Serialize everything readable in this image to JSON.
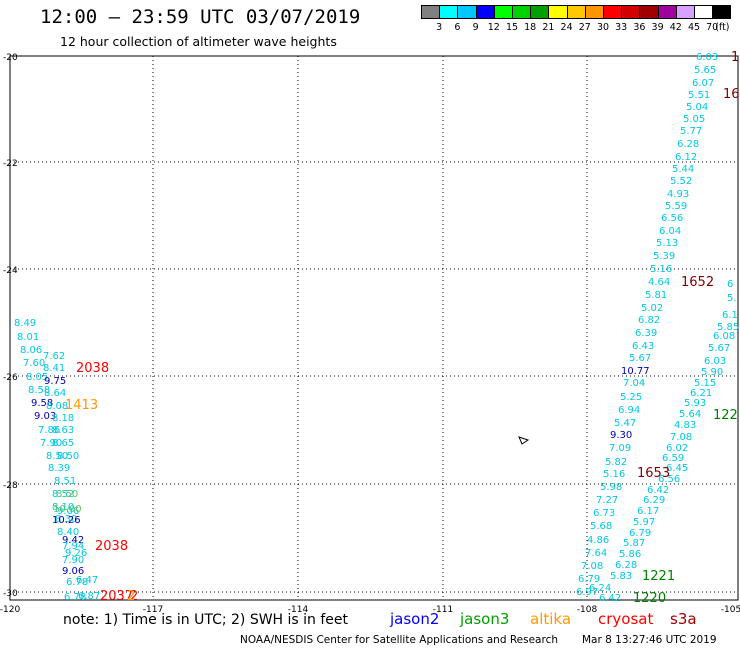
{
  "title": "12:00 — 23:59 UTC 03/07/2019",
  "subtitle": "12 hour collection of altimeter wave heights",
  "color_scale": {
    "ticks": [
      "3",
      "6",
      "9",
      "12",
      "15",
      "18",
      "21",
      "24",
      "27",
      "30",
      "33",
      "36",
      "39",
      "42",
      "45",
      "70"
    ],
    "unit": "(ft)",
    "colors": [
      "#808080",
      "#00ffff",
      "#00c8ff",
      "#0000ff",
      "#00ff00",
      "#00d200",
      "#00a000",
      "#ffff00",
      "#ffc800",
      "#ff9600",
      "#ff0000",
      "#d20000",
      "#a00000",
      "#a000a0",
      "#d8a0ff",
      "#ffffff",
      "#000000"
    ]
  },
  "map": {
    "lon_ticks": [
      "-120",
      "-117",
      "-114",
      "-111",
      "-108",
      "-105"
    ],
    "lat_ticks": [
      "-20",
      "-22",
      "-24",
      "-26",
      "-28",
      "-30"
    ]
  },
  "swaths": {
    "track_cyan": {
      "color": "#00c8e6",
      "labels": [
        "6.03",
        "5.65",
        "6.07",
        "5.51",
        "5.04",
        "5.05",
        "5.77",
        "6.28",
        "6.12",
        "5.44",
        "5.52",
        "4.93",
        "5.59",
        "6.56",
        "6.04",
        "5.13",
        "5.39",
        "5.16",
        "4.64",
        "5.81",
        "5.02",
        "6.82",
        "6.39",
        "6.43",
        "5.67",
        "7.04",
        "5.25",
        "6.94",
        "5.47",
        "7.09",
        "5.82",
        "5.16",
        "5.98",
        "7.27",
        "6.73",
        "5.68",
        "4.86",
        "7.64",
        "7.08",
        "6.79",
        "6.97",
        "6.24",
        "6.42",
        "5.83",
        "6.28",
        "5.86",
        "5.87",
        "6.79",
        "5.97",
        "6.17",
        "6.29",
        "6.42",
        "6.59",
        "6.02",
        "7.08",
        "4.83",
        "5.64",
        "5.93",
        "6.21",
        "5.15",
        "5.90",
        "6.03",
        "5.67",
        "6.08",
        "5.85",
        "6.1"
      ]
    },
    "track_blue": {
      "color": "#0000b4",
      "labels": [
        "10.77",
        "9.30"
      ]
    },
    "track_left": {
      "labels": [
        "8.49",
        "8.01",
        "8.06",
        "7.62",
        "7.60",
        "8.41",
        "8.05",
        "9.75",
        "8.58",
        "8.64",
        "9.58",
        "8.08",
        "9.03",
        "8.18",
        "7.86",
        "8.63",
        "7.90",
        "8.65",
        "8.50",
        "8.50",
        "8.39",
        "8.51",
        "8.52",
        "8.10",
        "9.06",
        "8.30",
        "10.26",
        "8.40",
        "9.42",
        "7.94",
        "9.26",
        "7.90",
        "9.06",
        "6.78",
        "6.47",
        "6.78",
        "6.87"
      ]
    },
    "track_left_blue": {
      "labels": [
        "9.75",
        "9.58",
        "9.03",
        "10.26",
        "9.42",
        "9.06"
      ]
    },
    "times_red": {
      "color": "#ff0000",
      "labels": [
        "2038",
        "2038",
        "2037",
        "2"
      ]
    },
    "times_orange": {
      "color": "#ff9900",
      "labels": [
        "1413"
      ]
    },
    "times_maroon": {
      "color": "#800000",
      "labels": [
        "1",
        "16",
        "1652",
        "1653"
      ]
    },
    "times_green": {
      "color": "#008000",
      "labels": [
        "122",
        "1221",
        "1220"
      ]
    }
  },
  "legend": {
    "note": "note: 1) Time is in UTC; 2) SWH is in feet",
    "items": [
      {
        "label": "jason2",
        "color": "#0000ff"
      },
      {
        "label": "jason3",
        "color": "#00a000"
      },
      {
        "label": "altika",
        "color": "#ff9900"
      },
      {
        "label": "cryosat",
        "color": "#ff0000"
      },
      {
        "label": "s3a",
        "color": "#a00000"
      }
    ]
  },
  "footer": {
    "source": "NOAA/NESDIS Center for Satellite Applications and Research",
    "timestamp": "Mar  8 13:27:46 UTC 2019"
  }
}
